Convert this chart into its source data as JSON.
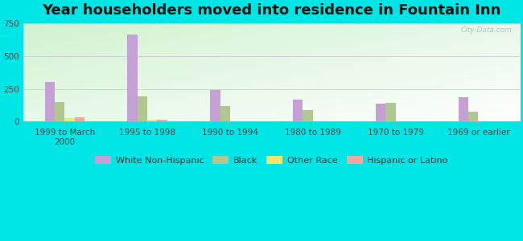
{
  "title": "Year householders moved into residence in Fountain Inn",
  "categories": [
    "1999 to March\n2000",
    "1995 to 1998",
    "1990 to 1994",
    "1980 to 1989",
    "1970 to 1979",
    "1969 or earlier"
  ],
  "series": {
    "White Non-Hispanic": [
      305,
      665,
      240,
      165,
      135,
      185
    ],
    "Black": [
      150,
      195,
      120,
      90,
      140,
      75
    ],
    "Other Race": [
      28,
      12,
      0,
      0,
      0,
      0
    ],
    "Hispanic or Latino": [
      32,
      12,
      0,
      0,
      0,
      0
    ]
  },
  "colors": {
    "White Non-Hispanic": "#c4a0d4",
    "Black": "#b0c890",
    "Other Race": "#f0e868",
    "Hispanic or Latino": "#f0a8a0"
  },
  "ylim": [
    0,
    750
  ],
  "yticks": [
    0,
    250,
    500,
    750
  ],
  "bar_width": 0.12,
  "outer_bg": "#00e5e5",
  "watermark": "City-Data.com",
  "title_fontsize": 13,
  "tick_fontsize": 7.5,
  "legend_fontsize": 8
}
